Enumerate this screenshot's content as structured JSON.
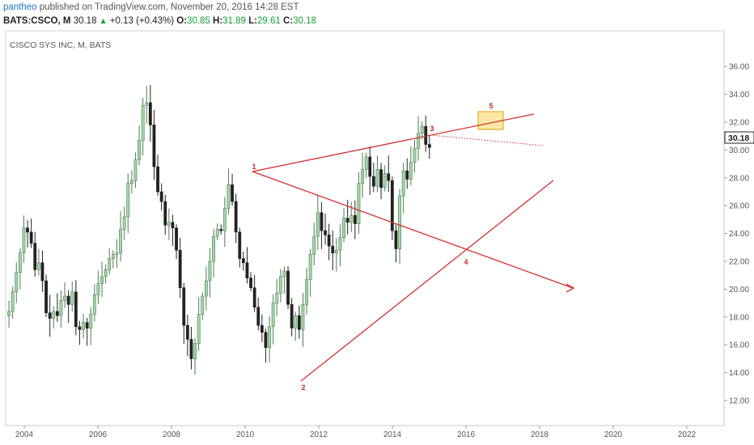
{
  "header": {
    "user": "pantheo",
    "published_text": "published on TradingView.com, November 20, 2016 14:28 EST",
    "symbol": "BATS:CSCO, M",
    "last": "30.18",
    "change": "+0.13 (+0.43%)",
    "o_label": "O:",
    "o": "30.85",
    "h_label": "H:",
    "h": "31.89",
    "l_label": "L:",
    "l": "29.61",
    "c_label": "C:",
    "c": "30.18"
  },
  "colors": {
    "up": "#169c3a",
    "down": "#222222",
    "candle_up_fill": "#a5d6a7",
    "annotation": "#d32f2f",
    "highlight": "#f9e08a"
  },
  "chart_data": {
    "type": "candlestick",
    "title": "CISCO SYS INC, M, BATS",
    "ylim": [
      10.5,
      37.5
    ],
    "xlim": [
      2003.5,
      2023.0
    ],
    "y_ticks": [
      "12.00",
      "14.00",
      "16.00",
      "18.00",
      "20.00",
      "22.00",
      "24.00",
      "26.00",
      "28.00",
      "30.00",
      "32.00",
      "34.00",
      "36.00"
    ],
    "x_ticks": [
      "2004",
      "2006",
      "2008",
      "2010",
      "2012",
      "2014",
      "2016",
      "2018",
      "2020",
      "2022"
    ],
    "last_price_label": "30.18",
    "closes": [
      18.4,
      19.8,
      21.2,
      22.6,
      24.4,
      24.1,
      23.3,
      21.4,
      21.9,
      20.6,
      18.3,
      17.9,
      18.4,
      18.1,
      19.2,
      19.5,
      18.9,
      19.8,
      17.3,
      17.1,
      17.6,
      17.2,
      18.2,
      19.6,
      20.4,
      20.9,
      21.4,
      22.2,
      22.5,
      22.6,
      24.3,
      25.2,
      27.6,
      27.8,
      29.3,
      30.7,
      33.2,
      33.4,
      31.8,
      28.8,
      27.0,
      26.3,
      24.6,
      24.8,
      24.4,
      22.8,
      20.1,
      17.4,
      16.4,
      15.0,
      16.1,
      18.2,
      19.5,
      20.6,
      22.0,
      23.8,
      24.3,
      24.2,
      25.8,
      27.5,
      26.3,
      24.1,
      22.2,
      21.9,
      20.8,
      20.1,
      18.7,
      17.4,
      16.9,
      15.8,
      17.3,
      19.0,
      19.7,
      20.9,
      21.3,
      18.9,
      17.2,
      18.1,
      17.1,
      18.9,
      20.7,
      22.5,
      23.8,
      25.5,
      24.2,
      23.9,
      23.1,
      22.6,
      22.8,
      23.7,
      25.1,
      24.8,
      25.3,
      24.7,
      27.6,
      28.6,
      29.5,
      28.1,
      27.4,
      28.6,
      27.3,
      28.3,
      27.8,
      24.2,
      22.9,
      26.7,
      28.5,
      27.9,
      29.1,
      30.1,
      31.2,
      31.7,
      30.4,
      30.18
    ],
    "annotation_labels": [
      "1",
      "2",
      "3",
      "4",
      "5"
    ]
  }
}
